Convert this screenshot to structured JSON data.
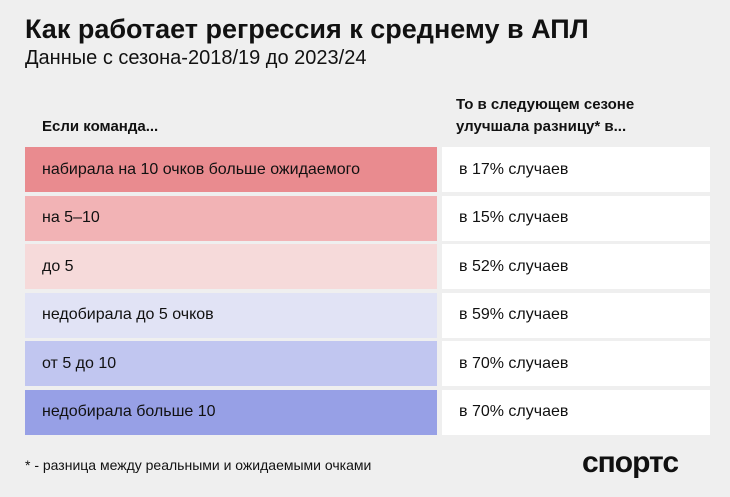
{
  "header": {
    "title": "Как работает регрессия к среднему в АПЛ",
    "subtitle": "Данные с сезона-2018/19 до 2023/24"
  },
  "table": {
    "columns": [
      "Если команда...",
      [
        "То в следующем сезоне",
        "улучшала разницу* в..."
      ]
    ],
    "rows": [
      [
        "набирала на 10 очков больше ожидаемого",
        "в 17% случаев"
      ],
      [
        "на 5–10",
        "в 15% случаев"
      ],
      [
        "до 5",
        "в 52% случаев"
      ],
      [
        "недобирала до 5 очков",
        "в 59% случаев"
      ],
      [
        "от 5 до 10",
        "в 70% случаев"
      ],
      [
        "недобирала больше 10",
        "в 70% случаев"
      ]
    ]
  },
  "footnote": "* - разница между реальными и ожидаемыми очками",
  "logo": "спортс"
}
